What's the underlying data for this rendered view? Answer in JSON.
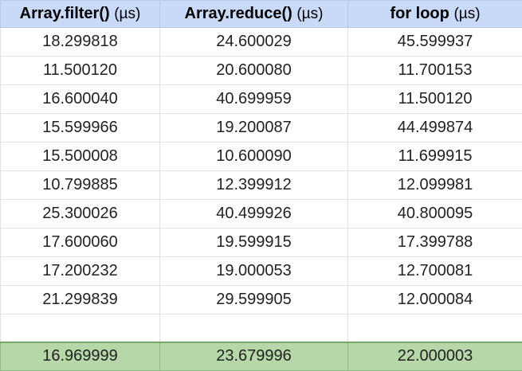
{
  "colors": {
    "header_bg": "#c9daf8",
    "average_row_bg": "#b6d7a8",
    "grid_line": "#e2e2e2"
  },
  "columns": [
    {
      "name": "Array.filter()",
      "unit": "(µs)"
    },
    {
      "name": "Array.reduce()",
      "unit": "(µs)"
    },
    {
      "name": "for loop",
      "unit": "(µs)"
    }
  ],
  "rows": [
    [
      "18.299818",
      "24.600029",
      "45.599937"
    ],
    [
      "11.500120",
      "20.600080",
      "11.700153"
    ],
    [
      "16.600040",
      "40.699959",
      "11.500120"
    ],
    [
      "15.599966",
      "19.200087",
      "44.499874"
    ],
    [
      "15.500008",
      "10.600090",
      "11.699915"
    ],
    [
      "10.799885",
      "12.399912",
      "12.099981"
    ],
    [
      "25.300026",
      "40.499926",
      "40.800095"
    ],
    [
      "17.600060",
      "19.599915",
      "17.399788"
    ],
    [
      "17.200232",
      "19.000053",
      "12.700081"
    ],
    [
      "21.299839",
      "29.599905",
      "12.000084"
    ]
  ],
  "average": [
    "16.969999",
    "23.679996",
    "22.000003"
  ]
}
